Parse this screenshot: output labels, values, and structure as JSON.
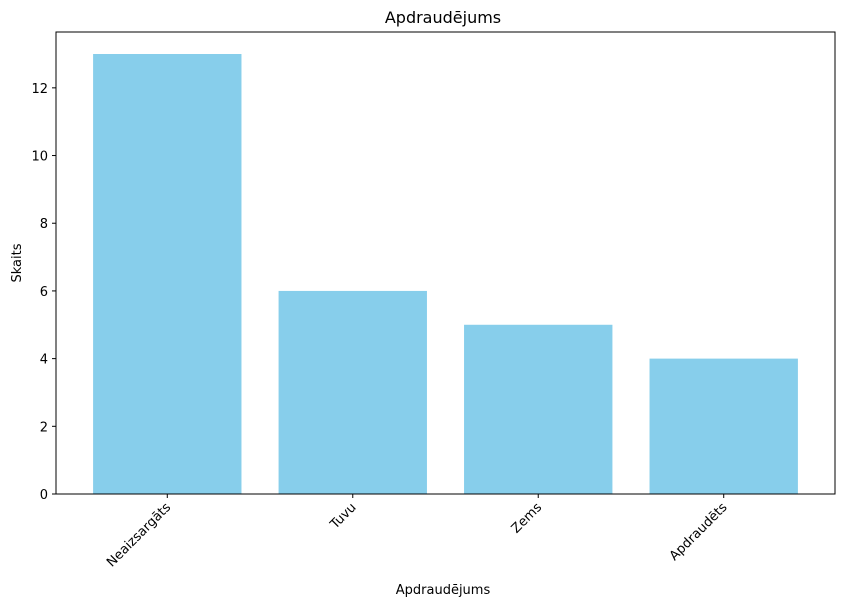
{
  "chart_data": {
    "type": "bar",
    "title": "Apdraudējums",
    "xlabel": "Apdraudējums",
    "ylabel": "Skaits",
    "categories": [
      "Neaizsargāts",
      "Tuvu",
      "Zems",
      "Apdraudēts"
    ],
    "values": [
      13,
      6,
      5,
      4
    ],
    "ylim": [
      0,
      13.65
    ],
    "yticks": [
      0,
      2,
      4,
      6,
      8,
      10,
      12
    ],
    "bar_color": "#87CEEB",
    "grid": false,
    "legend": false,
    "xtick_rotation_deg": 45
  }
}
